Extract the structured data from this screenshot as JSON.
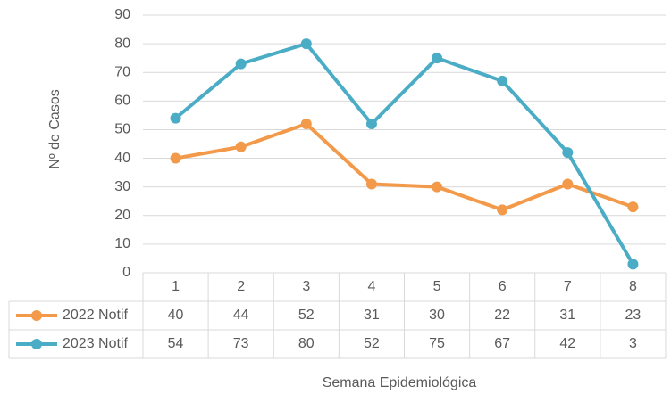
{
  "chart_data": {
    "type": "line",
    "x_label": "Semana Epidemiológica",
    "y_label": "Nº de Casos",
    "categories": [
      "1",
      "2",
      "3",
      "4",
      "5",
      "6",
      "7",
      "8"
    ],
    "series": [
      {
        "name": "2022 Notif",
        "color": "#f39a4a",
        "values": [
          40,
          44,
          52,
          31,
          30,
          22,
          31,
          23
        ]
      },
      {
        "name": "2023 Notif",
        "color": "#4bacc6",
        "values": [
          54,
          73,
          80,
          52,
          75,
          67,
          42,
          3
        ]
      }
    ],
    "ylim": [
      0,
      90
    ],
    "yticks": [
      0,
      10,
      20,
      30,
      40,
      50,
      60,
      70,
      80,
      90
    ],
    "grid": true
  }
}
